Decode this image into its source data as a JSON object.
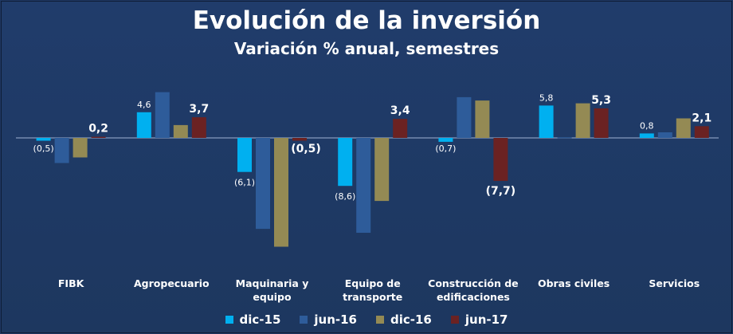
{
  "chart_data": {
    "type": "bar",
    "title": "Evolución de la inversión",
    "subtitle": "Variación % anual, semestres",
    "categories": [
      "FIBK",
      "Agropecuario",
      "Maquinaria y equipo",
      "Equipo de transporte",
      "Construcción de edificaciones",
      "Obras civiles",
      "Servicios"
    ],
    "category_lines": [
      [
        "FIBK"
      ],
      [
        "Agropecuario"
      ],
      [
        "Maquinaria y",
        "equipo"
      ],
      [
        "Equipo de",
        "transporte"
      ],
      [
        "Construcción de",
        "edificaciones"
      ],
      [
        "Obras civiles"
      ],
      [
        "Servicios"
      ]
    ],
    "series": [
      {
        "name": "dic-15",
        "color": "#00b0f0",
        "values": [
          -0.5,
          4.6,
          -6.1,
          -8.6,
          -0.7,
          5.8,
          0.8
        ],
        "labels": [
          "(0,5)",
          "4,6",
          "(6,1)",
          "(8,6)",
          "(0,7)",
          "5,8",
          "0,8"
        ]
      },
      {
        "name": "jun-16",
        "color": "#2e5c9a",
        "values": [
          -4.5,
          8.2,
          -16.3,
          -17.0,
          7.3,
          0.1,
          1.0
        ],
        "labels": [
          "",
          "",
          "",
          "",
          "",
          "",
          ""
        ]
      },
      {
        "name": "dic-16",
        "color": "#948a54",
        "values": [
          -3.5,
          2.3,
          -19.5,
          -11.3,
          6.7,
          6.2,
          3.5
        ],
        "labels": [
          "",
          "",
          "",
          "",
          "",
          "",
          ""
        ]
      },
      {
        "name": "jun-17",
        "color": "#6b2222",
        "values": [
          0.2,
          3.7,
          -0.5,
          3.4,
          -7.7,
          5.3,
          2.1
        ],
        "labels": [
          "0,2",
          "3,7",
          "(0,5)",
          "3,4",
          "(7,7)",
          "5,3",
          "2,1"
        ]
      }
    ],
    "ylim": [
      -20,
      10
    ],
    "grid": false,
    "legend": "bottom",
    "axis_color": "#9fb3d1"
  }
}
